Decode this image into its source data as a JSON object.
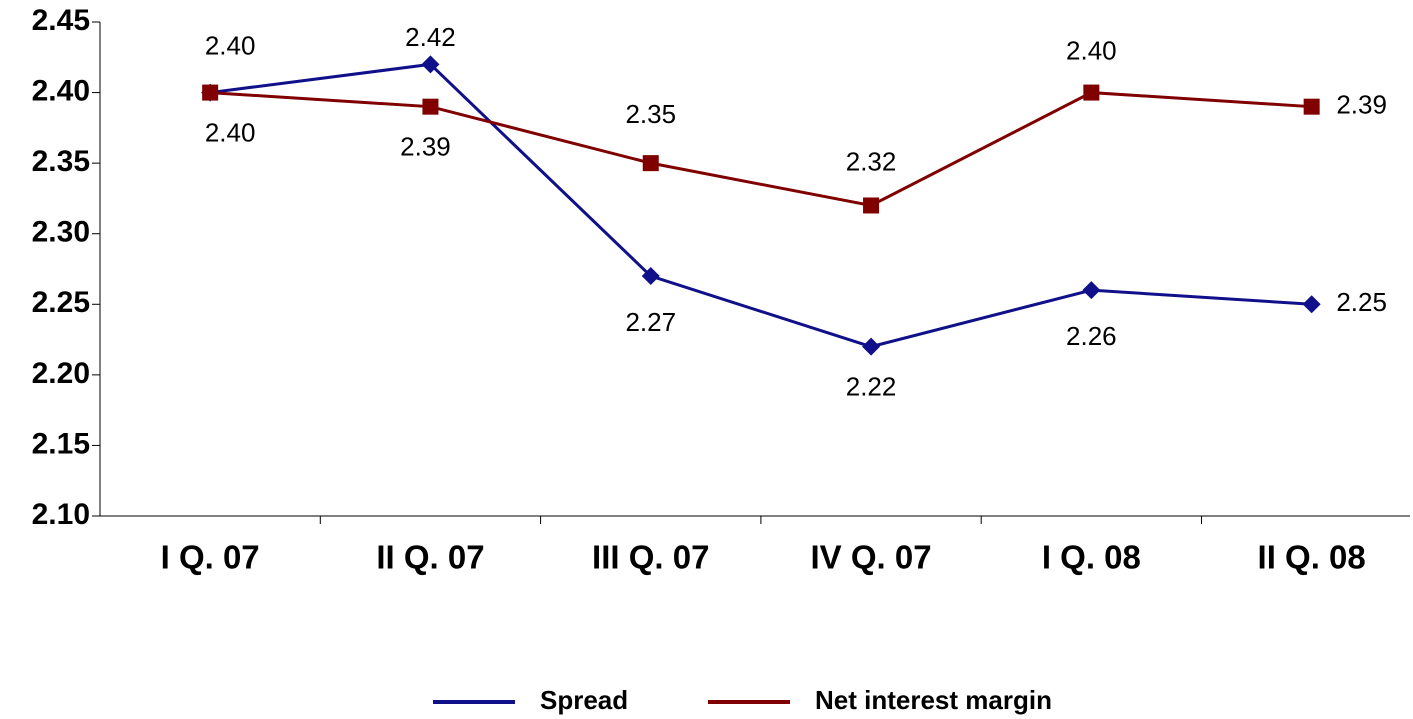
{
  "chart_data": {
    "type": "line",
    "categories": [
      "I Q. 07",
      "II Q. 07",
      "III Q. 07",
      "IV Q. 07",
      "I Q. 08",
      "II Q. 08"
    ],
    "series": [
      {
        "name": "Spread",
        "color": "#10108a",
        "values": [
          2.4,
          2.42,
          2.27,
          2.22,
          2.26,
          2.25
        ],
        "value_labels": [
          "2.40",
          "2.42",
          "2.27",
          "2.22",
          "2.26",
          "2.25"
        ]
      },
      {
        "name": "Net interest margin",
        "color": "#800000",
        "values": [
          2.4,
          2.39,
          2.35,
          2.32,
          2.4,
          2.39
        ],
        "value_labels": [
          "2.40",
          "2.39",
          "2.35",
          "2.32",
          "2.40",
          "2.39"
        ]
      }
    ],
    "ylim": [
      2.1,
      2.45
    ],
    "yticks": [
      {
        "value": 2.1,
        "label": "2.10"
      },
      2.15,
      {
        "value": 2.2,
        "label": "2.20"
      },
      2.25,
      {
        "value": 2.3,
        "label": "2.30"
      },
      2.35,
      {
        "value": 2.4,
        "label": "2.40"
      },
      2.45
    ],
    "legend": "bottom"
  }
}
